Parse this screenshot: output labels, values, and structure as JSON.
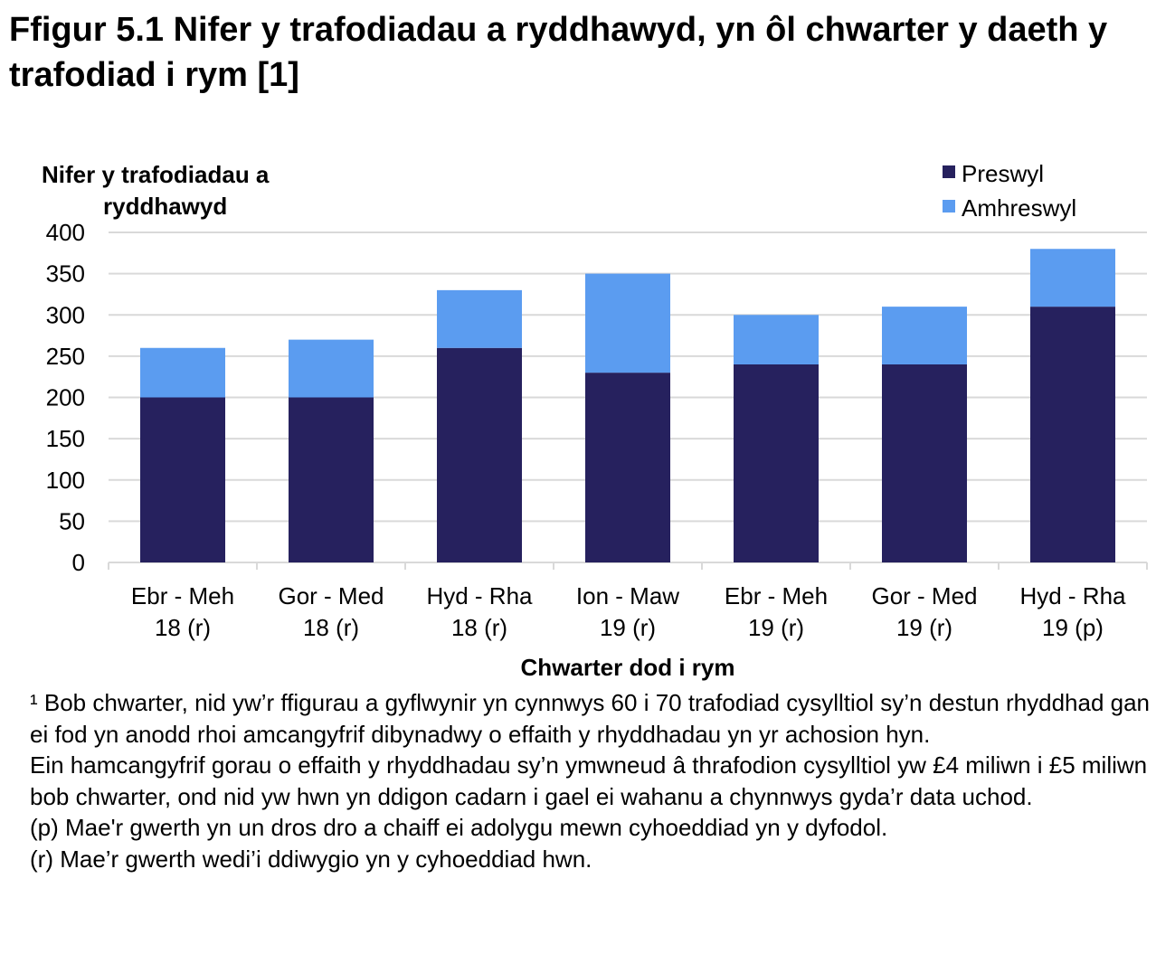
{
  "chart_data": {
    "type": "bar",
    "stacked": true,
    "title": "Ffigur 5.1  Nifer y trafodiadau a ryddhawyd, yn ôl chwarter y daeth y trafodiad i rym [1]",
    "ylabel": "Nifer y trafodiadau a ryddhawyd",
    "xlabel": "Chwarter dod i rym",
    "ylim": [
      0,
      400
    ],
    "yticks": [
      0,
      50,
      100,
      150,
      200,
      250,
      300,
      350,
      400
    ],
    "grid": true,
    "legend": "top-right",
    "categories": [
      [
        "Ebr - Meh",
        "18 (r)"
      ],
      [
        "Gor - Med",
        "18 (r)"
      ],
      [
        "Hyd - Rha",
        "18 (r)"
      ],
      [
        "Ion - Maw",
        "19 (r)"
      ],
      [
        "Ebr - Meh",
        "19 (r)"
      ],
      [
        "Gor - Med",
        "19 (r)"
      ],
      [
        "Hyd - Rha",
        "19 (p)"
      ]
    ],
    "series": [
      {
        "name": "Preswyl",
        "color": "#26215e",
        "values": [
          200,
          200,
          260,
          230,
          240,
          240,
          310
        ]
      },
      {
        "name": "Amhreswyl",
        "color": "#5b9cf0",
        "values": [
          60,
          70,
          70,
          120,
          60,
          70,
          70
        ]
      }
    ]
  },
  "notes": [
    "¹ Bob chwarter, nid yw’r ffigurau a gyflwynir yn cynnwys 60 i 70 trafodiad cysylltiol sy’n destun rhyddhad gan ei fod yn anodd rhoi amcangyfrif dibynadwy o effaith y rhyddhadau yn yr achosion hyn.",
    "Ein hamcangyfrif gorau o effaith y rhyddhadau sy’n ymwneud â thrafodion cysylltiol yw £4 miliwn i £5 miliwn bob chwarter, ond nid yw hwn yn ddigon cadarn i gael ei wahanu a chynnwys gyda’r data uchod.",
    "(p) Mae'r gwerth yn un dros dro a chaiff ei adolygu mewn cyhoeddiad yn y dyfodol.",
    "(r) Mae’r gwerth wedi’i ddiwygio yn y cyhoeddiad hwn."
  ]
}
